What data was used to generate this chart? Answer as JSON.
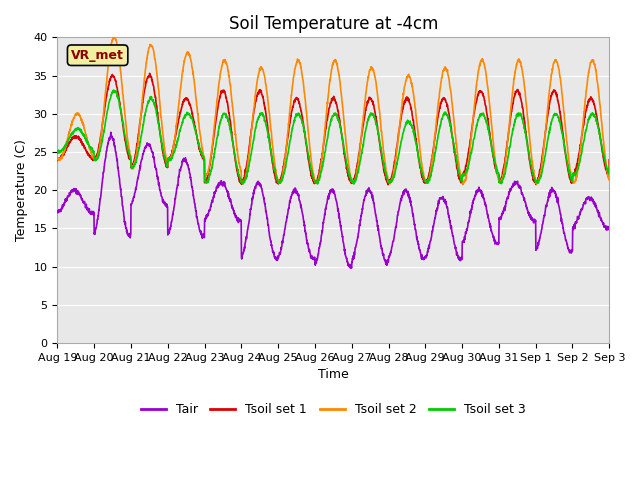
{
  "title": "Soil Temperature at -4cm",
  "xlabel": "Time",
  "ylabel": "Temperature (C)",
  "ylim": [
    0,
    40
  ],
  "fig_bg_color": "#ffffff",
  "plot_bg_color": "#e8e8e8",
  "annotation_text": "VR_met",
  "legend_labels": [
    "Tair",
    "Tsoil set 1",
    "Tsoil set 2",
    "Tsoil set 3"
  ],
  "colors": {
    "Tair": "#9900cc",
    "Tsoil set 1": "#dd0000",
    "Tsoil set 2": "#ff8800",
    "Tsoil set 3": "#00cc00"
  },
  "xtick_labels": [
    "Aug 19",
    "Aug 20",
    "Aug 21",
    "Aug 22",
    "Aug 23",
    "Aug 24",
    "Aug 25",
    "Aug 26",
    "Aug 27",
    "Aug 28",
    "Aug 29",
    "Aug 30",
    "Aug 31",
    "Sep 1",
    "Sep 2",
    "Sep 3"
  ],
  "n_days": 15,
  "line_width": 1.2,
  "title_fontsize": 12,
  "legend_fontsize": 9,
  "tick_fontsize": 8,
  "ylabel_fontsize": 9,
  "xlabel_fontsize": 9
}
